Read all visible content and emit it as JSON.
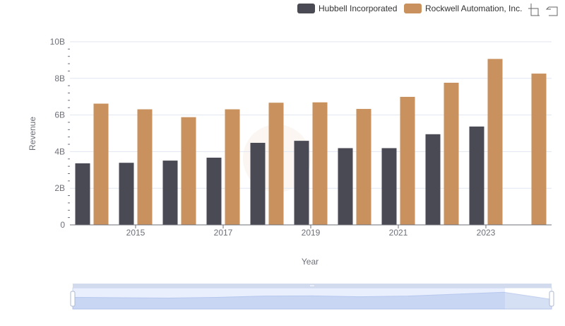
{
  "chart_data": {
    "type": "bar",
    "x": [
      2014,
      2015,
      2016,
      2017,
      2018,
      2019,
      2020,
      2021,
      2022,
      2023,
      2024
    ],
    "x_tick_labels": [
      "2015",
      "2017",
      "2019",
      "2021",
      "2023"
    ],
    "y_tick_labels": [
      "0",
      "2B",
      "4B",
      "6B",
      "8B",
      "10B"
    ],
    "ylim": [
      0,
      10000000000
    ],
    "xlabel": "Year",
    "ylabel": "Revenue",
    "grid": true,
    "legend_position": "top-right",
    "series": [
      {
        "name": "Hubbell Incorporated",
        "color": "#4a4a55",
        "values": [
          3360000000,
          3390000000,
          3510000000,
          3670000000,
          4480000000,
          4590000000,
          4190000000,
          4190000000,
          4950000000,
          5370000000,
          null
        ]
      },
      {
        "name": "Rockwell Automation, Inc.",
        "color": "#c8915e",
        "values": [
          6620000000,
          6310000000,
          5880000000,
          6310000000,
          6670000000,
          6690000000,
          6330000000,
          6990000000,
          7760000000,
          9060000000,
          8260000000
        ]
      }
    ]
  },
  "toolbox": {
    "icons": [
      "zoom-icon",
      "restore-icon"
    ]
  },
  "colors": {
    "grid": "#e0e6f1",
    "axis": "#6e7079",
    "zoom_fill": "#d2dbee",
    "zoom_border": "#acb8d1"
  }
}
